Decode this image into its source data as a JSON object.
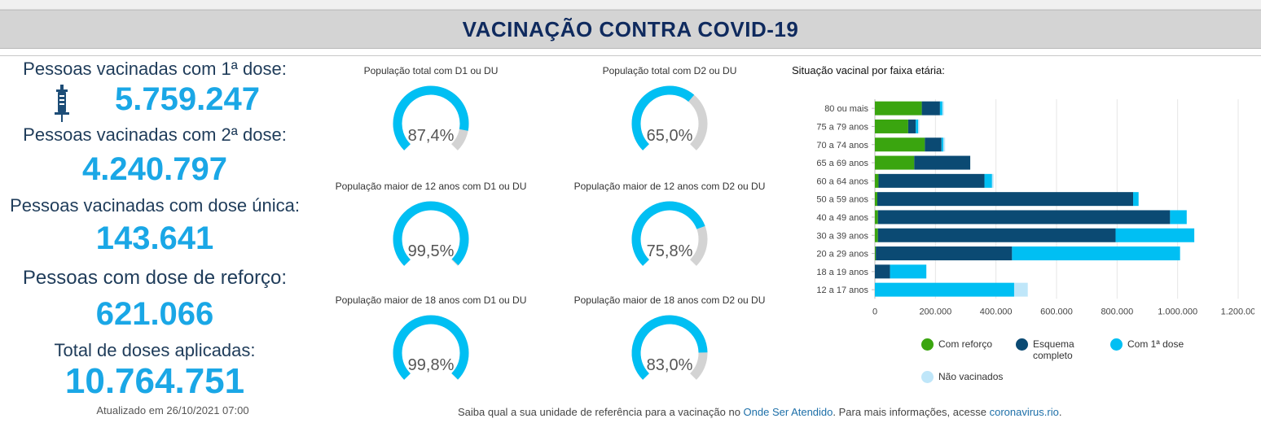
{
  "header": {
    "title": "VACINAÇÃO CONTRA COVID-19"
  },
  "stats": {
    "dose1_label": "Pessoas vacinadas com 1ª dose:",
    "dose1_value": "5.759.247",
    "dose2_label": "Pessoas vacinadas com 2ª dose:",
    "dose2_value": "4.240.797",
    "single_label": "Pessoas vacinadas com dose única:",
    "single_value": "143.641",
    "booster_label": "Pessoas com dose de reforço:",
    "booster_value": "621.066",
    "total_label": "Total de doses aplicadas:",
    "total_value": "10.764.751",
    "updated": "Atualizado em 26/10/2021 07:00",
    "icon": "syringe-icon"
  },
  "gauges": [
    {
      "title": "População total com D1 ou DU",
      "value_text": "87,4%",
      "fraction": 0.874
    },
    {
      "title": "População total com D2 ou DU",
      "value_text": "65,0%",
      "fraction": 0.65
    },
    {
      "title": "População maior de 12 anos com D1 ou DU",
      "value_text": "99,5%",
      "fraction": 0.995
    },
    {
      "title": "População maior de 12 anos com D2 ou DU",
      "value_text": "75,8%",
      "fraction": 0.758
    },
    {
      "title": "População maior de 18 anos com D1 ou DU",
      "value_text": "99,8%",
      "fraction": 0.998
    },
    {
      "title": "População maior de 18 anos com D2 ou DU",
      "value_text": "83,0%",
      "fraction": 0.83
    }
  ],
  "colors": {
    "header_bg": "#d4d4d4",
    "title": "#0f2a5e",
    "value_blue": "#1aa7e6",
    "gauge_fill": "#00bff3",
    "gauge_track": "#d3d3d3",
    "reforco": "#3aa50f",
    "completo": "#0b4a73",
    "dose1": "#00bff3",
    "nao_vacinados": "#bfe6f9"
  },
  "chart_title": "Situação vacinal por faixa etária:",
  "chart_data": {
    "type": "bar",
    "orientation": "horizontal",
    "stacked": true,
    "categories": [
      "80 ou mais",
      "75 a 79 anos",
      "70 a 74 anos",
      "65 a 69 anos",
      "60 a 64 anos",
      "50 a 59 anos",
      "40 a 49 anos",
      "30 a 39 anos",
      "20 a 29 anos",
      "18 a 19 anos",
      "12 a 17 anos"
    ],
    "series": [
      {
        "name": "Com reforço",
        "values": [
          155000,
          110000,
          165000,
          130000,
          12000,
          8000,
          10000,
          10000,
          3000,
          0,
          0
        ]
      },
      {
        "name": "Esquema completo",
        "values": [
          60000,
          25000,
          55000,
          185000,
          350000,
          845000,
          965000,
          785000,
          450000,
          50000,
          0
        ]
      },
      {
        "name": "Com 1ª dose",
        "values": [
          8000,
          8000,
          6000,
          0,
          25000,
          18000,
          55000,
          260000,
          555000,
          120000,
          460000
        ]
      },
      {
        "name": "Não vacinados",
        "values": [
          5000,
          4000,
          6000,
          0,
          5000,
          0,
          0,
          0,
          0,
          0,
          45000
        ]
      }
    ],
    "xlim": [
      0,
      1200000
    ],
    "xticks": [
      "0",
      "200.000",
      "400.000",
      "600.000",
      "800.000",
      "1.000.000",
      "1.200.00"
    ],
    "grid": true,
    "legend_position": "bottom"
  },
  "legend": [
    "Com reforço",
    "Esquema completo",
    "Com 1ª dose",
    "Não vacinados"
  ],
  "footer": {
    "text1": "Saiba qual a sua unidade de referência para a vacinação no ",
    "link1": "Onde Ser Atendido",
    "text2": ". Para mais informações, acesse ",
    "link2": "coronavirus.rio",
    "text3": "."
  }
}
